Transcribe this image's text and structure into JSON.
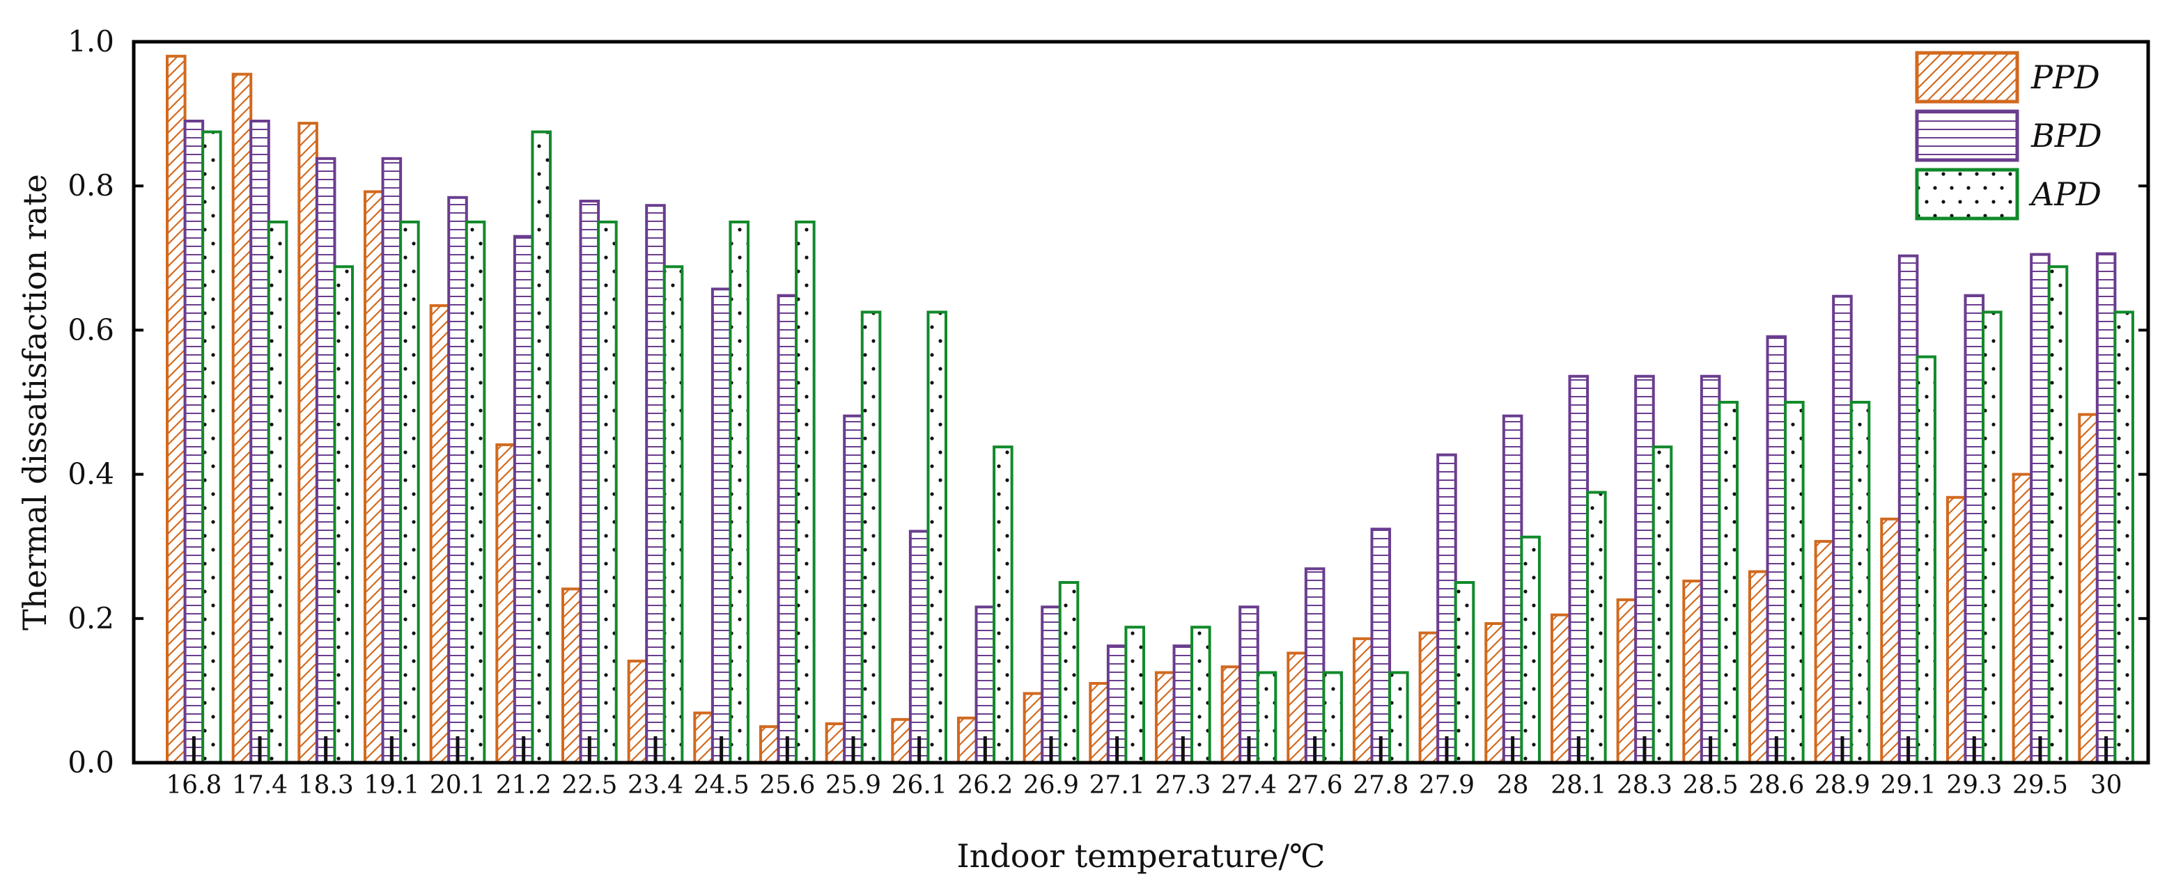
{
  "chart_data": {
    "type": "bar",
    "xlabel": "Indoor temperature/℃",
    "ylabel": "Thermal dissatisfaction rate",
    "ylim": [
      0.0,
      1.0
    ],
    "yticks": [
      "0.0",
      "0.2",
      "0.4",
      "0.6",
      "0.8",
      "1.0"
    ],
    "grid": false,
    "legend_position": "top-right",
    "categories": [
      "16.8",
      "17.4",
      "18.3",
      "19.1",
      "20.1",
      "21.2",
      "22.5",
      "23.4",
      "24.5",
      "25.6",
      "25.9",
      "26.1",
      "26.2",
      "26.9",
      "27.1",
      "27.3",
      "27.4",
      "27.6",
      "27.8",
      "27.9",
      "28",
      "28.1",
      "28.3",
      "28.5",
      "28.6",
      "28.9",
      "29.1",
      "29.3",
      "29.5",
      "30"
    ],
    "series": [
      {
        "name": "PPD",
        "color": "#d2691e",
        "pattern": "diagonal-hatch",
        "values": [
          0.98,
          0.955,
          0.887,
          0.792,
          0.634,
          0.441,
          0.241,
          0.141,
          0.069,
          0.05,
          0.054,
          0.06,
          0.062,
          0.096,
          0.11,
          0.125,
          0.133,
          0.152,
          0.172,
          0.18,
          0.193,
          0.205,
          0.226,
          0.252,
          0.265,
          0.307,
          0.338,
          0.368,
          0.4,
          0.483
        ]
      },
      {
        "name": "BPD",
        "color": "#6a3d8f",
        "pattern": "horizontal-lines",
        "values": [
          0.89,
          0.89,
          0.838,
          0.838,
          0.784,
          0.73,
          0.779,
          0.773,
          0.657,
          0.648,
          0.481,
          0.321,
          0.216,
          0.216,
          0.162,
          0.162,
          0.216,
          0.269,
          0.324,
          0.427,
          0.481,
          0.536,
          0.536,
          0.536,
          0.591,
          0.647,
          0.703,
          0.648,
          0.705,
          0.706
        ]
      },
      {
        "name": "APD",
        "color": "#118a2b",
        "pattern": "dots",
        "values": [
          0.875,
          0.75,
          0.688,
          0.75,
          0.75,
          0.875,
          0.75,
          0.688,
          0.75,
          0.75,
          0.625,
          0.625,
          0.438,
          0.25,
          0.188,
          0.188,
          0.125,
          0.125,
          0.125,
          0.25,
          0.313,
          0.375,
          0.438,
          0.5,
          0.5,
          0.5,
          0.563,
          0.625,
          0.688,
          0.625
        ]
      }
    ]
  }
}
